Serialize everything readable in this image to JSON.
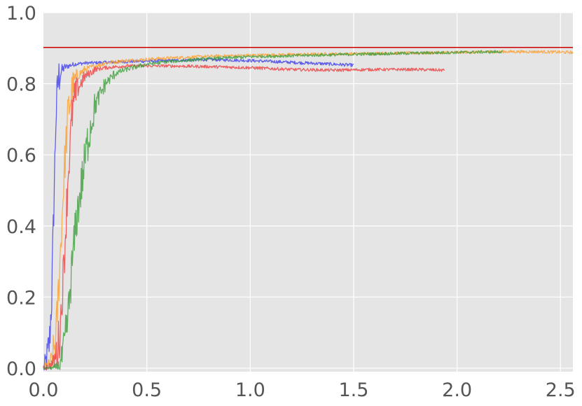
{
  "chart_data": {
    "type": "line",
    "title": "",
    "xlabel": "",
    "ylabel": "",
    "xlim": [
      0,
      2.56
    ],
    "ylim": [
      -0.01,
      1.0
    ],
    "grid": true,
    "legend": "none",
    "x_ticks": [
      {
        "value": 0.0,
        "label": "0.0"
      },
      {
        "value": 0.5,
        "label": "0.5"
      },
      {
        "value": 1.0,
        "label": "1.0"
      },
      {
        "value": 1.5,
        "label": "1.5"
      },
      {
        "value": 2.0,
        "label": "2.0"
      },
      {
        "value": 2.5,
        "label": "2.5"
      }
    ],
    "y_ticks": [
      {
        "value": 0.0,
        "label": "0.0"
      },
      {
        "value": 0.2,
        "label": "0.2"
      },
      {
        "value": 0.4,
        "label": "0.4"
      },
      {
        "value": 0.6,
        "label": "0.6"
      },
      {
        "value": 0.8,
        "label": "0.8"
      },
      {
        "value": 1.0,
        "label": "1.0"
      }
    ],
    "reference_line": {
      "y": 0.902,
      "color": "#cc0000"
    },
    "series": [
      {
        "color": "#3333ee",
        "x": [
          0.0,
          0.02,
          0.03,
          0.04,
          0.05,
          0.06,
          0.07,
          0.08,
          0.1,
          0.12,
          0.15,
          0.2,
          0.3,
          0.4,
          0.6,
          0.8,
          1.0,
          1.2,
          1.4,
          1.5
        ],
        "y": [
          0.0,
          0.03,
          0.08,
          0.2,
          0.45,
          0.7,
          0.8,
          0.83,
          0.845,
          0.85,
          0.855,
          0.858,
          0.86,
          0.862,
          0.865,
          0.868,
          0.865,
          0.86,
          0.855,
          0.852
        ]
      },
      {
        "color": "#ff9922",
        "x": [
          0.0,
          0.04,
          0.06,
          0.08,
          0.1,
          0.12,
          0.14,
          0.16,
          0.2,
          0.25,
          0.3,
          0.4,
          0.6,
          0.8,
          1.0,
          1.3,
          1.6,
          2.0,
          2.2,
          2.4,
          2.56
        ],
        "y": [
          0.0,
          0.02,
          0.08,
          0.3,
          0.55,
          0.72,
          0.79,
          0.82,
          0.84,
          0.85,
          0.858,
          0.865,
          0.872,
          0.877,
          0.88,
          0.883,
          0.885,
          0.888,
          0.89,
          0.89,
          0.888
        ]
      },
      {
        "color": "#ee3333",
        "x": [
          0.0,
          0.04,
          0.06,
          0.08,
          0.1,
          0.12,
          0.14,
          0.16,
          0.2,
          0.25,
          0.3,
          0.4,
          0.6,
          0.8,
          1.0,
          1.2,
          1.4,
          1.6,
          1.8,
          1.94
        ],
        "y": [
          0.0,
          0.01,
          0.03,
          0.1,
          0.3,
          0.55,
          0.72,
          0.78,
          0.82,
          0.84,
          0.845,
          0.85,
          0.85,
          0.848,
          0.845,
          0.84,
          0.838,
          0.84,
          0.84,
          0.838
        ]
      },
      {
        "color": "#339933",
        "x": [
          0.0,
          0.05,
          0.08,
          0.1,
          0.12,
          0.14,
          0.16,
          0.18,
          0.2,
          0.22,
          0.25,
          0.3,
          0.35,
          0.4,
          0.5,
          0.6,
          0.8,
          1.0,
          1.3,
          1.6,
          2.0,
          2.22
        ],
        "y": [
          0.0,
          0.0,
          0.01,
          0.05,
          0.15,
          0.3,
          0.42,
          0.5,
          0.58,
          0.66,
          0.74,
          0.8,
          0.83,
          0.84,
          0.855,
          0.862,
          0.87,
          0.876,
          0.88,
          0.884,
          0.888,
          0.89
        ]
      }
    ]
  }
}
